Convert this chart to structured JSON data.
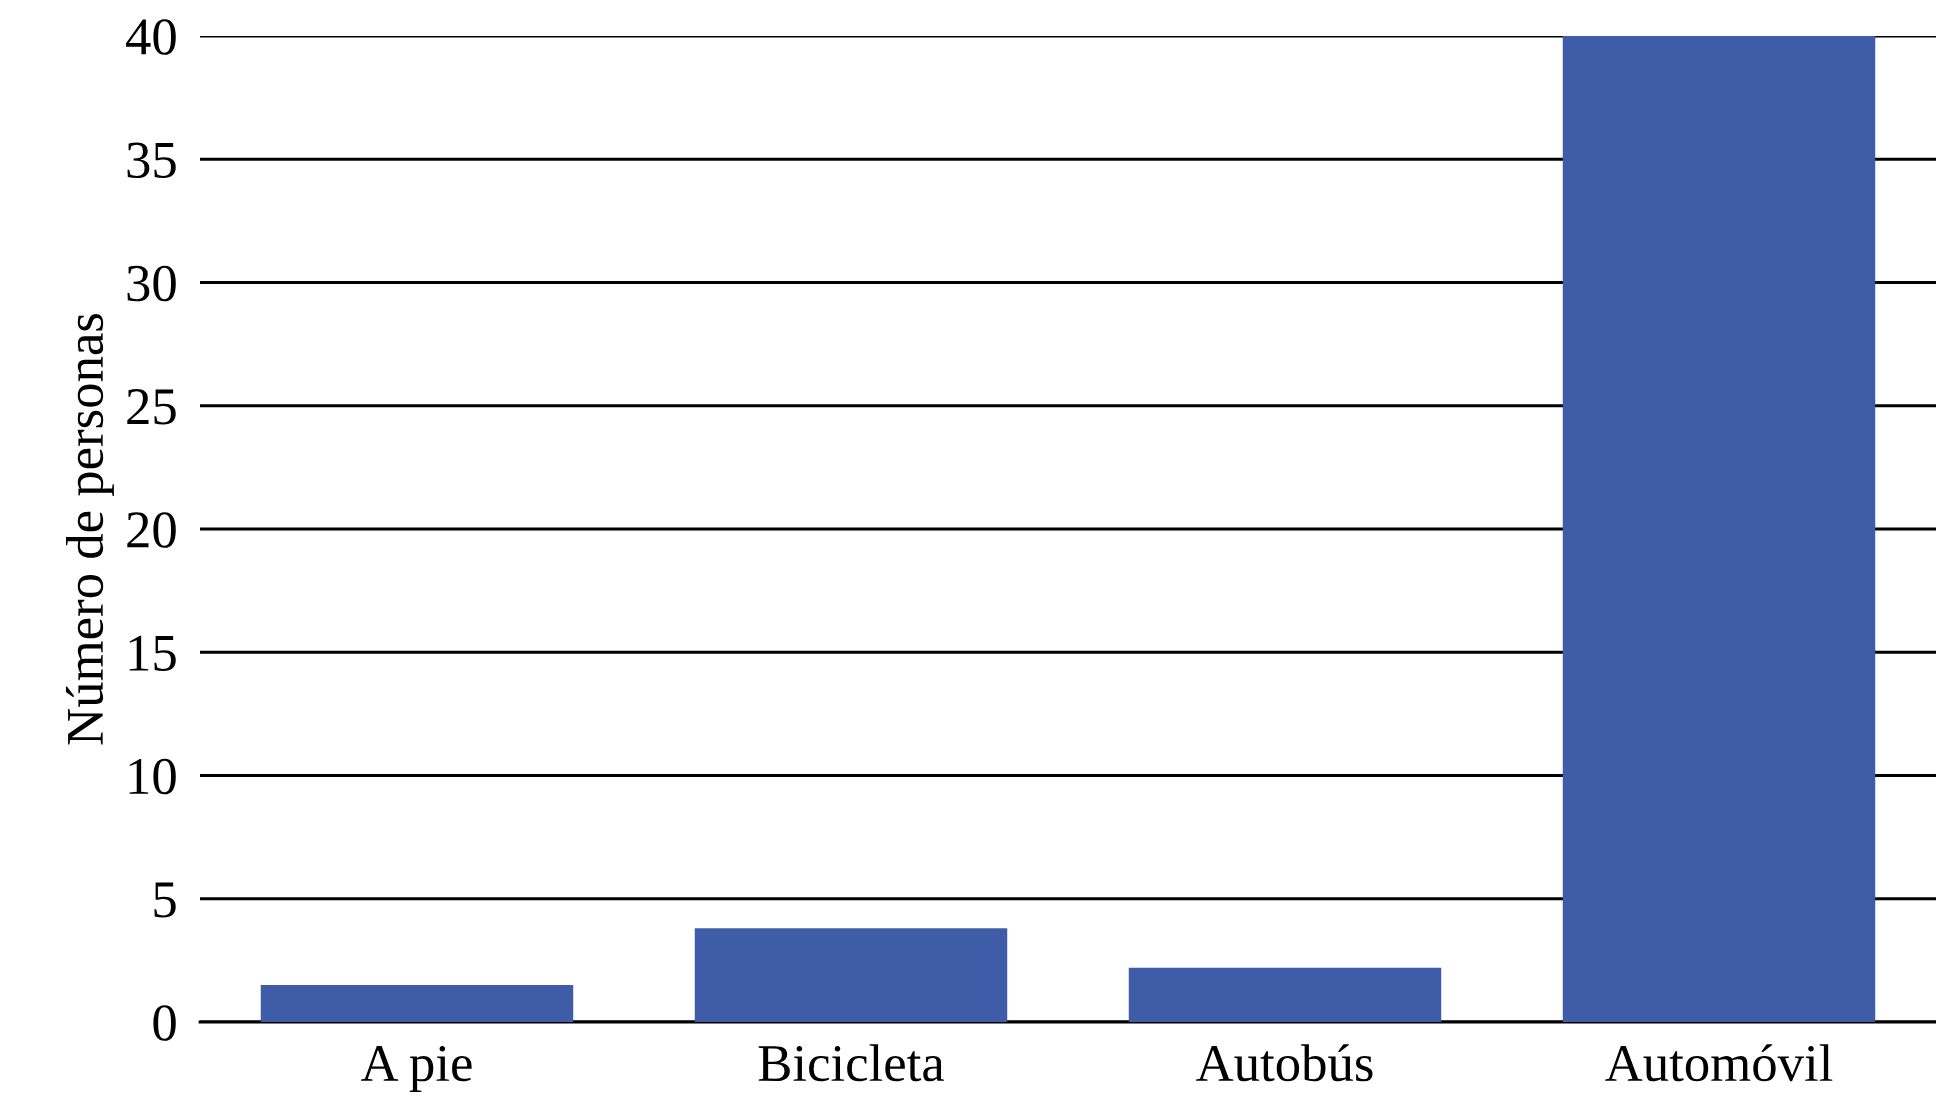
{
  "chart_data": {
    "type": "bar",
    "ylabel": "Número de personas",
    "categories": [
      "A pie",
      "Bicicleta",
      "Autobús",
      "Automóvil"
    ],
    "values": [
      1.5,
      3.8,
      2.2,
      40
    ],
    "color": "#3f5ca8",
    "ylim": [
      0,
      40
    ],
    "yticks": [
      0,
      5,
      10,
      15,
      20,
      25,
      30,
      35,
      40
    ],
    "grid": "y"
  }
}
